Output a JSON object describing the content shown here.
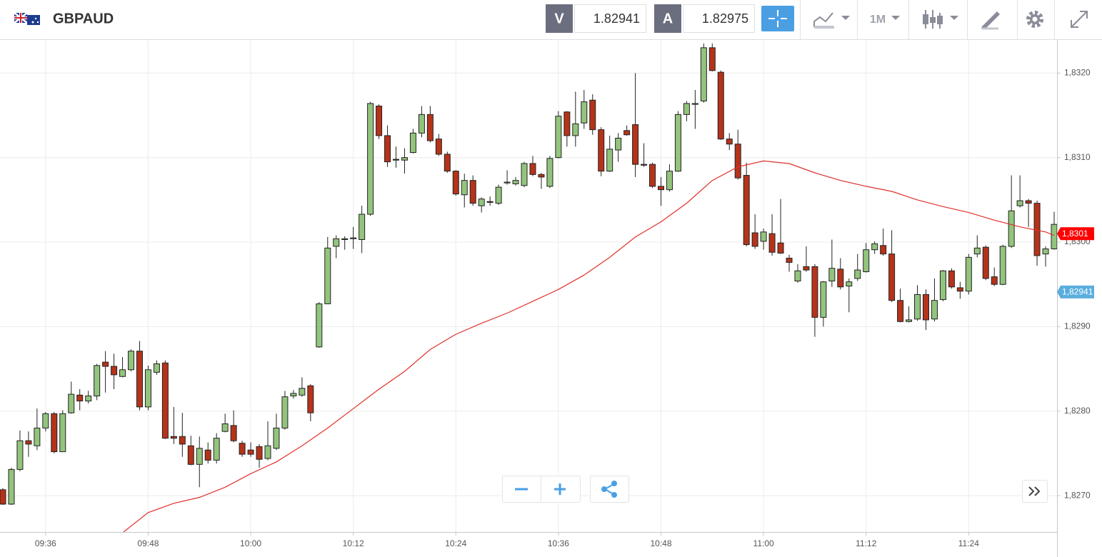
{
  "header": {
    "symbol": "GBPAUD",
    "bid_label": "V",
    "bid": 1.82941,
    "ask_label": "A",
    "ask": 1.82975,
    "interval": "1M"
  },
  "chart_data": {
    "type": "candlestick",
    "up_color": "#93c47d",
    "down_color": "#b5331a",
    "xlim": [
      "09:31",
      "11:34"
    ],
    "xticks": [
      "09:36",
      "09:48",
      "10:00",
      "10:12",
      "10:24",
      "10:36",
      "10:48",
      "11:00",
      "11:12",
      "11:24"
    ],
    "ylim": [
      1.82657,
      1.8324
    ],
    "yticks": [
      {
        "value": 1.827,
        "label": "1,8270"
      },
      {
        "value": 1.828,
        "label": "1,8280"
      },
      {
        "value": 1.829,
        "label": "1,8290"
      },
      {
        "value": 1.83,
        "label": "1,8300"
      },
      {
        "value": 1.831,
        "label": "1,8310"
      },
      {
        "value": 1.832,
        "label": "1,8320"
      }
    ],
    "grid": true,
    "x": [
      "09:31",
      "09:32",
      "09:33",
      "09:34",
      "09:35",
      "09:36",
      "09:37",
      "09:38",
      "09:39",
      "09:40",
      "09:41",
      "09:42",
      "09:43",
      "09:44",
      "09:45",
      "09:46",
      "09:47",
      "09:48",
      "09:49",
      "09:50",
      "09:51",
      "09:52",
      "09:53",
      "09:54",
      "09:55",
      "09:56",
      "09:57",
      "09:58",
      "09:59",
      "10:00",
      "10:01",
      "10:02",
      "10:03",
      "10:04",
      "10:05",
      "10:06",
      "10:07",
      "10:08",
      "10:09",
      "10:10",
      "10:11",
      "10:12",
      "10:13",
      "10:14",
      "10:15",
      "10:16",
      "10:17",
      "10:18",
      "10:19",
      "10:20",
      "10:21",
      "10:22",
      "10:23",
      "10:24",
      "10:25",
      "10:26",
      "10:27",
      "10:28",
      "10:29",
      "10:30",
      "10:31",
      "10:32",
      "10:33",
      "10:34",
      "10:35",
      "10:36",
      "10:37",
      "10:38",
      "10:39",
      "10:40",
      "10:41",
      "10:42",
      "10:43",
      "10:44",
      "10:45",
      "10:46",
      "10:47",
      "10:48",
      "10:49",
      "10:50",
      "10:51",
      "10:52",
      "10:53",
      "10:54",
      "10:55",
      "10:56",
      "10:57",
      "10:58",
      "10:59",
      "11:00",
      "11:01",
      "11:02",
      "11:03",
      "11:04",
      "11:05",
      "11:06",
      "11:07",
      "11:08",
      "11:09",
      "11:10",
      "11:11",
      "11:12",
      "11:13",
      "11:14",
      "11:15",
      "11:16",
      "11:17",
      "11:18",
      "11:19",
      "11:20",
      "11:21",
      "11:22",
      "11:23",
      "11:24",
      "11:25",
      "11:26",
      "11:27",
      "11:28",
      "11:29",
      "11:30",
      "11:31",
      "11:32",
      "11:33",
      "11:34"
    ],
    "open": [
      1.82707,
      1.8269,
      1.82731,
      1.82765,
      1.82759,
      1.8278,
      1.82797,
      1.82752,
      1.82798,
      1.82819,
      1.82812,
      1.82818,
      1.82858,
      1.82853,
      1.82841,
      1.82849,
      1.82871,
      1.82805,
      1.82846,
      1.82857,
      1.8277,
      1.8277,
      1.82759,
      1.82737,
      1.82754,
      1.82742,
      1.82776,
      1.82783,
      1.82762,
      1.82754,
      1.82758,
      1.82744,
      1.82756,
      1.8278,
      1.82818,
      1.82819,
      1.8283,
      1.82876,
      1.82927,
      1.82995,
      1.83003,
      1.83004,
      1.83003,
      1.83033,
      1.83161,
      1.83126,
      1.83098,
      1.83097,
      1.83106,
      1.83129,
      1.83151,
      1.83122,
      1.83104,
      1.83084,
      1.83056,
      1.83073,
      1.83043,
      1.83048,
      1.83046,
      1.8307,
      1.83069,
      1.83067,
      1.83093,
      1.8308,
      1.83066,
      1.831,
      1.83154,
      1.83126,
      1.83141,
      1.83168,
      1.83133,
      1.83084,
      1.83109,
      1.83132,
      1.83139,
      1.83092,
      1.83092,
      1.83066,
      1.83062,
      1.83084,
      1.83151,
      1.83163,
      1.83167,
      1.8323,
      1.83201,
      1.83122,
      1.83116,
      1.83079,
      1.83011,
      1.83001,
      1.8301,
      1.82999,
      1.82981,
      1.82954,
      1.82971,
      1.82971,
      1.82911,
      1.82954,
      1.82968,
      1.82948,
      1.82957,
      1.82965,
      1.82991,
      1.82996,
      1.82986,
      1.82931,
      1.82906,
      1.82909,
      1.82938,
      1.82909,
      1.82932,
      1.82966,
      1.82946,
      1.82942,
      1.82986,
      1.82994,
      1.82959,
      1.8295,
      1.82995,
      1.83043,
      1.83049,
      1.83046,
      1.82986,
      1.82992
    ],
    "high": [
      1.82709,
      1.82733,
      1.82777,
      1.82776,
      1.82803,
      1.82799,
      1.82799,
      1.82801,
      1.82835,
      1.82826,
      1.82824,
      1.82856,
      1.82871,
      1.82868,
      1.82864,
      1.82873,
      1.82883,
      1.82854,
      1.8286,
      1.8286,
      1.82805,
      1.82798,
      1.82771,
      1.8277,
      1.82763,
      1.82774,
      1.82797,
      1.82801,
      1.82765,
      1.82763,
      1.82761,
      1.82788,
      1.82797,
      1.82824,
      1.82825,
      1.8284,
      1.82832,
      1.82929,
      1.83006,
      1.83008,
      1.83007,
      1.83018,
      1.83043,
      1.83166,
      1.83163,
      1.83138,
      1.83113,
      1.83111,
      1.83134,
      1.83161,
      1.83161,
      1.83128,
      1.83107,
      1.83085,
      1.83081,
      1.83079,
      1.83053,
      1.83054,
      1.83068,
      1.83085,
      1.83077,
      1.83095,
      1.83102,
      1.83082,
      1.83102,
      1.83155,
      1.83155,
      1.83178,
      1.8318,
      1.83175,
      1.83136,
      1.83126,
      1.83129,
      1.83138,
      1.832,
      1.83117,
      1.83094,
      1.83077,
      1.83092,
      1.83155,
      1.83167,
      1.8318,
      1.83235,
      1.83235,
      1.83203,
      1.83129,
      1.83133,
      1.83094,
      1.83033,
      1.83016,
      1.83033,
      1.83051,
      1.82985,
      1.82974,
      1.82995,
      1.82974,
      1.82954,
      1.83003,
      1.82981,
      1.82957,
      1.82986,
      1.82999,
      1.83001,
      1.83016,
      1.83014,
      1.82945,
      1.82924,
      1.82949,
      1.82944,
      1.82957,
      1.82967,
      1.82969,
      1.82953,
      1.82986,
      1.83008,
      1.82996,
      1.8297,
      1.82997,
      1.83079,
      1.83079,
      1.83051,
      1.83049,
      1.82995,
      1.83036
    ],
    "low": [
      1.82689,
      1.82689,
      1.82729,
      1.82746,
      1.82754,
      1.82776,
      1.8275,
      1.82752,
      1.82797,
      1.82801,
      1.82809,
      1.82813,
      1.82822,
      1.82826,
      1.8284,
      1.82847,
      1.82801,
      1.82801,
      1.82843,
      1.82767,
      1.82761,
      1.82746,
      1.82736,
      1.8271,
      1.82738,
      1.82738,
      1.82775,
      1.82763,
      1.82746,
      1.82746,
      1.82733,
      1.82742,
      1.82754,
      1.82778,
      1.82815,
      1.82817,
      1.82788,
      1.82875,
      1.82927,
      1.82981,
      1.82991,
      1.82992,
      1.82987,
      1.83031,
      1.83122,
      1.83089,
      1.83088,
      1.83081,
      1.83105,
      1.83124,
      1.83118,
      1.83102,
      1.83082,
      1.83055,
      1.83041,
      1.83043,
      1.83035,
      1.83043,
      1.83044,
      1.83068,
      1.83067,
      1.83065,
      1.83078,
      1.83063,
      1.83064,
      1.83099,
      1.83113,
      1.83113,
      1.83134,
      1.83127,
      1.83078,
      1.83083,
      1.83095,
      1.83126,
      1.83077,
      1.83089,
      1.83064,
      1.83043,
      1.8306,
      1.83083,
      1.83143,
      1.83134,
      1.83165,
      1.83202,
      1.83121,
      1.83109,
      1.83074,
      1.82995,
      1.82992,
      1.82991,
      1.82984,
      1.82986,
      1.82965,
      1.82952,
      1.82965,
      1.82888,
      1.829,
      1.82947,
      1.82944,
      1.82917,
      1.82954,
      1.82964,
      1.82986,
      1.82984,
      1.82929,
      1.82905,
      1.82905,
      1.82907,
      1.82896,
      1.82906,
      1.8293,
      1.82945,
      1.82933,
      1.82938,
      1.82982,
      1.82955,
      1.82948,
      1.82949,
      1.82993,
      1.83041,
      1.83018,
      1.82972,
      1.82971,
      1.82991
    ],
    "close": [
      1.8269,
      1.82731,
      1.82765,
      1.82761,
      1.8278,
      1.82797,
      1.82752,
      1.82797,
      1.8282,
      1.82812,
      1.82818,
      1.82854,
      1.82853,
      1.82843,
      1.82849,
      1.82871,
      1.82805,
      1.82849,
      1.82856,
      1.82768,
      1.82768,
      1.82761,
      1.82737,
      1.82756,
      1.82742,
      1.82768,
      1.82785,
      1.82765,
      1.82749,
      1.82749,
      1.82743,
      1.82759,
      1.8278,
      1.82817,
      1.82821,
      1.82827,
      1.82798,
      1.82927,
      1.82993,
      1.83004,
      1.83004,
      1.83005,
      1.83033,
      1.83164,
      1.83126,
      1.83095,
      1.83097,
      1.831,
      1.83129,
      1.83151,
      1.8312,
      1.83104,
      1.83084,
      1.83057,
      1.83073,
      1.83046,
      1.83051,
      1.83047,
      1.83065,
      1.83071,
      1.83073,
      1.83093,
      1.8308,
      1.83077,
      1.83099,
      1.83149,
      1.83126,
      1.8314,
      1.83166,
      1.83133,
      1.83084,
      1.8311,
      1.83123,
      1.83127,
      1.83092,
      1.83091,
      1.83066,
      1.83062,
      1.83084,
      1.83151,
      1.83164,
      1.83164,
      1.8323,
      1.83203,
      1.83122,
      1.83116,
      1.83076,
      1.82997,
      1.82995,
      1.83012,
      1.82988,
      1.82987,
      1.82976,
      1.82966,
      1.82967,
      1.82911,
      1.82953,
      1.82969,
      1.82947,
      1.82953,
      1.82967,
      1.82991,
      1.82998,
      1.82986,
      1.82931,
      1.82906,
      1.82908,
      1.82938,
      1.82908,
      1.82931,
      1.82966,
      1.82947,
      1.82942,
      1.82982,
      1.82993,
      1.82957,
      1.8295,
      1.82995,
      1.83037,
      1.83049,
      1.83046,
      1.82984,
      1.82992,
      1.83021
    ],
    "lines": [
      {
        "color": "#e0312b",
        "x": [
          "09:45",
          "09:48",
          "09:51",
          "09:54",
          "09:57",
          "10:00",
          "10:03",
          "10:06",
          "10:09",
          "10:12",
          "10:15",
          "10:18",
          "10:21",
          "10:24",
          "10:27",
          "10:30",
          "10:33",
          "10:36",
          "10:39",
          "10:42",
          "10:45",
          "10:48",
          "10:51",
          "10:54",
          "10:57",
          "11:00",
          "11:03",
          "11:06",
          "11:09",
          "11:12",
          "11:15",
          "11:18",
          "11:21",
          "11:24",
          "11:27",
          "11:30",
          "11:33",
          "11:34"
        ],
        "values": [
          1.82656,
          1.8268,
          1.82691,
          1.82698,
          1.8271,
          1.82726,
          1.8274,
          1.82759,
          1.8278,
          1.82803,
          1.82826,
          1.82847,
          1.82873,
          1.82891,
          1.82904,
          1.82916,
          1.8293,
          1.82944,
          1.82961,
          1.82982,
          1.83006,
          1.83024,
          1.83046,
          1.83073,
          1.83089,
          1.83096,
          1.83093,
          1.83082,
          1.83073,
          1.83066,
          1.8306,
          1.8305,
          1.83042,
          1.83035,
          1.83026,
          1.83018,
          1.83012,
          1.83008
        ]
      }
    ],
    "price_tags": [
      {
        "value": 1.8301,
        "label": "1,8301",
        "color": "#ff0000"
      },
      {
        "value": 1.82941,
        "label": "1,82941",
        "color": "#5aaede"
      }
    ]
  }
}
